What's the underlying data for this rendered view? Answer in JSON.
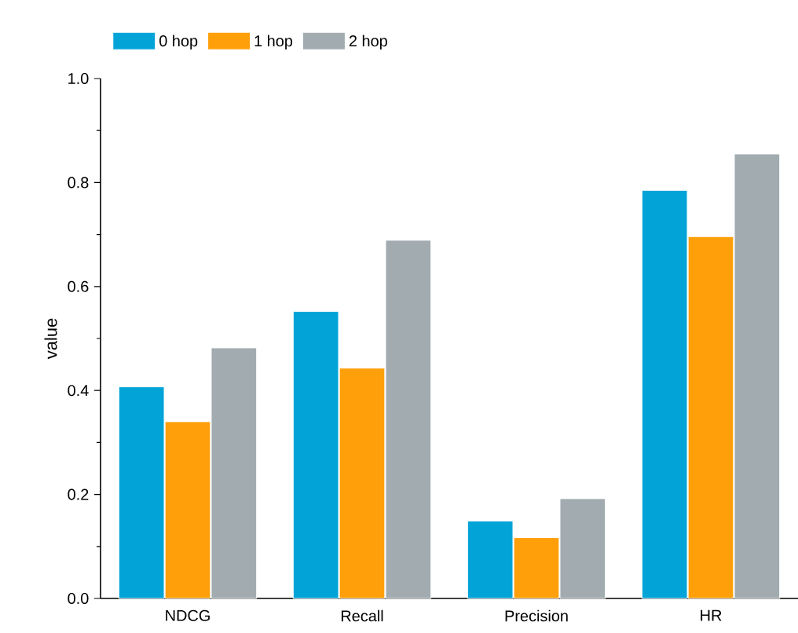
{
  "chart_data": {
    "type": "bar",
    "ylabel": "value",
    "categories": [
      "NDCG",
      "Recall",
      "Precision",
      "HR"
    ],
    "series": [
      {
        "name": "0 hop",
        "color": "#02a4d8",
        "values": [
          0.407,
          0.552,
          0.149,
          0.785
        ]
      },
      {
        "name": "1 hop",
        "color": "#ff9f0a",
        "values": [
          0.34,
          0.443,
          0.117,
          0.696
        ]
      },
      {
        "name": "2 hop",
        "color": "#a2acb0",
        "values": [
          0.482,
          0.689,
          0.192,
          0.855
        ]
      }
    ],
    "ylim": [
      0,
      1.0
    ],
    "yticks": [
      {
        "value": 0,
        "label": "0.0"
      },
      0.2,
      0.4,
      0.6,
      0.8,
      {
        "value": 1,
        "label": "1.0"
      }
    ],
    "legend": "top left",
    "grid": false
  }
}
